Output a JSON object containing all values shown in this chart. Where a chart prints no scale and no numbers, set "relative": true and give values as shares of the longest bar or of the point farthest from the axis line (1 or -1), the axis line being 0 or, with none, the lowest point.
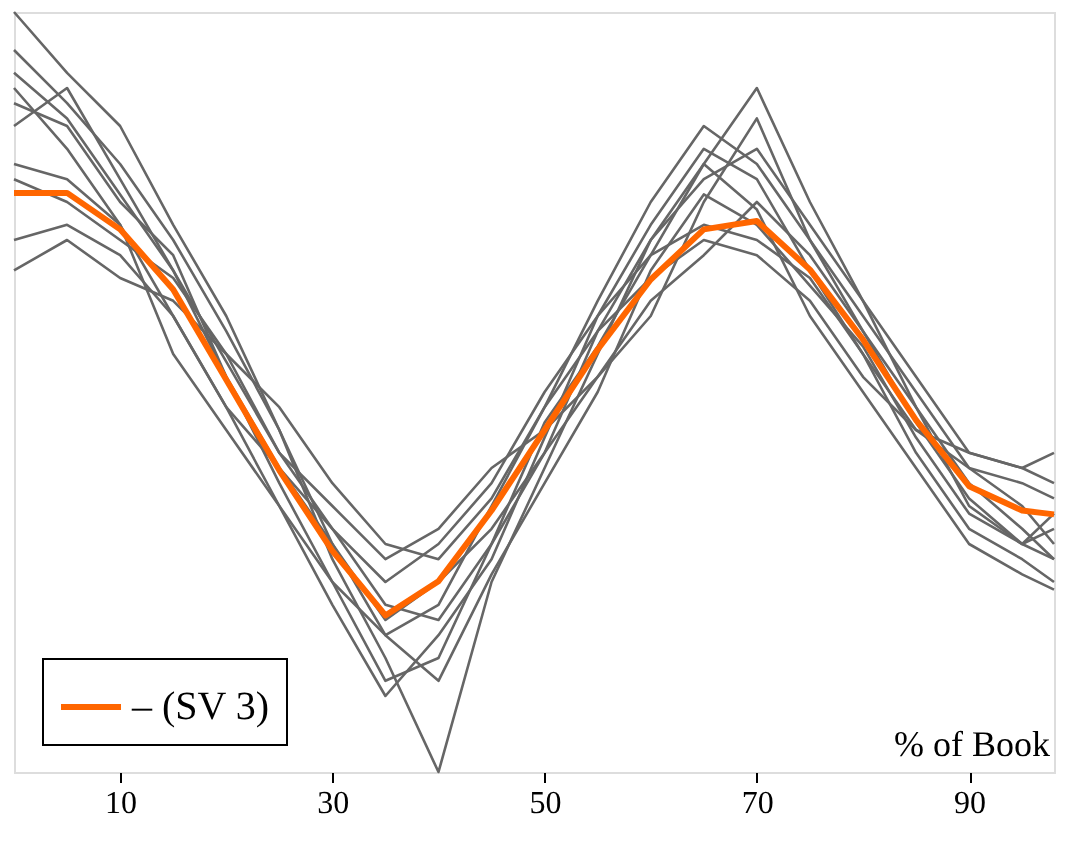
{
  "chart_data": {
    "type": "line",
    "relative": true,
    "x": [
      0,
      5,
      10,
      15,
      20,
      25,
      30,
      35,
      40,
      45,
      50,
      55,
      60,
      65,
      70,
      75,
      80,
      85,
      90,
      95,
      98
    ],
    "xlim": [
      0,
      98
    ],
    "xticks": [
      10,
      30,
      50,
      70,
      90
    ],
    "grid": false,
    "legend": "bottom left",
    "line_style": "solid",
    "marker": "none",
    "annotations": [
      "% of Book"
    ],
    "series": [
      {
        "color": "#666666",
        "values": [
          0.95,
          0.88,
          0.8,
          0.7,
          0.58,
          0.45,
          0.3,
          0.18,
          0.22,
          0.35,
          0.48,
          0.62,
          0.75,
          0.85,
          0.8,
          0.7,
          0.6,
          0.5,
          0.4,
          0.38,
          0.36
        ]
      },
      {
        "color": "#666666",
        "values": [
          0.85,
          0.9,
          0.78,
          0.66,
          0.52,
          0.38,
          0.25,
          0.12,
          0.15,
          0.3,
          0.42,
          0.58,
          0.7,
          0.8,
          0.9,
          0.75,
          0.62,
          0.48,
          0.35,
          0.3,
          0.32
        ]
      },
      {
        "color": "#666666",
        "values": [
          0.7,
          0.72,
          0.68,
          0.6,
          0.48,
          0.4,
          0.32,
          0.25,
          0.3,
          0.38,
          0.5,
          0.6,
          0.68,
          0.72,
          0.7,
          0.65,
          0.55,
          0.45,
          0.4,
          0.35,
          0.3
        ]
      },
      {
        "color": "#666666",
        "values": [
          1.0,
          0.92,
          0.85,
          0.72,
          0.6,
          0.45,
          0.28,
          0.15,
          0.0,
          0.25,
          0.4,
          0.55,
          0.7,
          0.78,
          0.82,
          0.72,
          0.62,
          0.52,
          0.42,
          0.4,
          0.38
        ]
      },
      {
        "color": "#666666",
        "values": [
          0.78,
          0.75,
          0.7,
          0.65,
          0.55,
          0.42,
          0.35,
          0.28,
          0.32,
          0.4,
          0.45,
          0.52,
          0.62,
          0.68,
          0.75,
          0.68,
          0.58,
          0.48,
          0.38,
          0.32,
          0.28
        ]
      },
      {
        "color": "#666666",
        "values": [
          0.9,
          0.82,
          0.72,
          0.6,
          0.48,
          0.35,
          0.22,
          0.1,
          0.18,
          0.28,
          0.44,
          0.6,
          0.72,
          0.82,
          0.78,
          0.66,
          0.55,
          0.42,
          0.32,
          0.28,
          0.25
        ]
      },
      {
        "color": "#666666",
        "values": [
          0.66,
          0.7,
          0.65,
          0.62,
          0.55,
          0.48,
          0.38,
          0.3,
          0.28,
          0.36,
          0.48,
          0.58,
          0.65,
          0.7,
          0.68,
          0.62,
          0.52,
          0.45,
          0.42,
          0.4,
          0.42
        ]
      },
      {
        "color": "#666666",
        "values": [
          0.88,
          0.85,
          0.75,
          0.68,
          0.52,
          0.4,
          0.3,
          0.2,
          0.25,
          0.32,
          0.42,
          0.52,
          0.6,
          0.75,
          0.86,
          0.7,
          0.58,
          0.46,
          0.36,
          0.3,
          0.34
        ]
      },
      {
        "color": "#666666",
        "values": [
          0.8,
          0.78,
          0.72,
          0.55,
          0.45,
          0.35,
          0.25,
          0.18,
          0.12,
          0.26,
          0.38,
          0.5,
          0.66,
          0.76,
          0.72,
          0.64,
          0.56,
          0.44,
          0.34,
          0.3,
          0.28
        ]
      },
      {
        "color": "#666666",
        "values": [
          0.92,
          0.86,
          0.76,
          0.66,
          0.54,
          0.42,
          0.32,
          0.22,
          0.2,
          0.3,
          0.46,
          0.56,
          0.68,
          0.8,
          0.74,
          0.6,
          0.5,
          0.4,
          0.3,
          0.26,
          0.24
        ]
      },
      {
        "name": "– (SV 3)",
        "color": "#ff6600",
        "values": [
          0.762,
          0.762,
          0.714,
          0.635,
          0.516,
          0.397,
          0.291,
          0.206,
          0.251,
          0.344,
          0.45,
          0.556,
          0.648,
          0.714,
          0.725,
          0.661,
          0.569,
          0.463,
          0.376,
          0.344,
          0.339
        ]
      }
    ]
  }
}
